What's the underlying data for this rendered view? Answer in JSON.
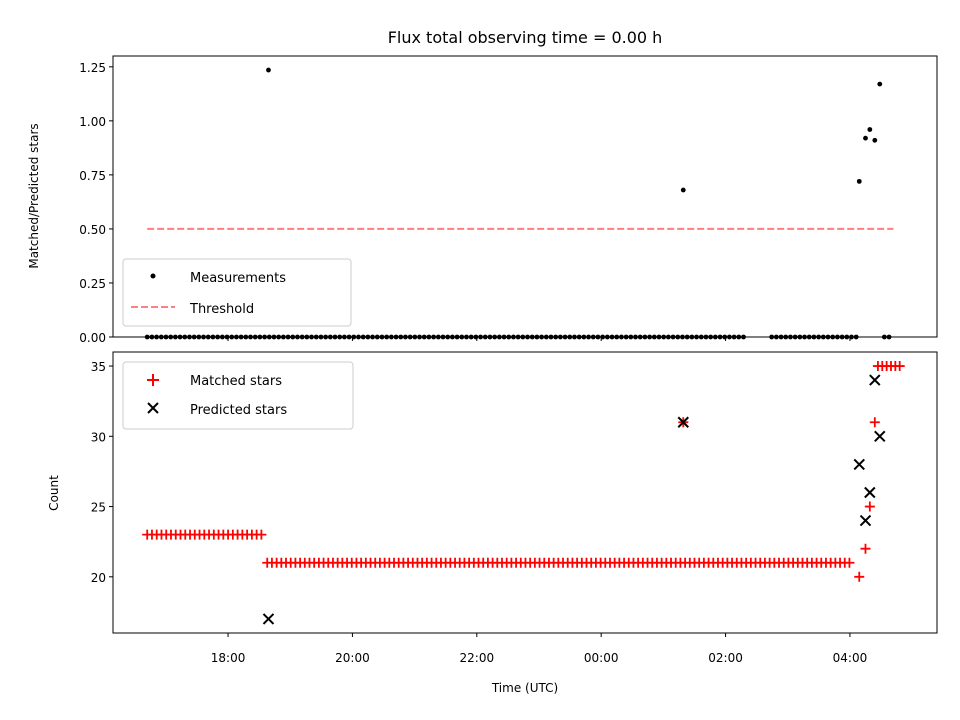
{
  "figure": {
    "title": "Flux total observing time = 0.00 h",
    "xlabel": "Time (UTC)"
  },
  "chart_data": [
    {
      "type": "scatter",
      "ylabel": "Matched/Predicted stars",
      "xlim": [
        -1.85,
        11.4
      ],
      "ylim": [
        0,
        1.3
      ],
      "yticks": [
        0.0,
        0.25,
        0.5,
        0.75,
        1.0,
        1.25
      ],
      "ytick_labels": [
        "0.00",
        "0.25",
        "0.50",
        "0.75",
        "1.00",
        "1.25"
      ],
      "legend_position": "lower-left",
      "threshold": {
        "name": "Threshold",
        "value": 0.5,
        "x_range": [
          -1.3,
          10.7
        ],
        "color": "#ff7f7f"
      },
      "series": [
        {
          "name": "Measurements",
          "color": "#000000",
          "marker": "dot",
          "zeros": {
            "start": -1.3,
            "end": 10.7,
            "step": 0.0755,
            "value": 0,
            "skip": [
              [
                8.3,
                8.7
              ],
              [
                10.15,
                10.55
              ]
            ]
          },
          "points": [
            {
              "x": 0.65,
              "y": 1.235
            },
            {
              "x": 7.32,
              "y": 0.68
            },
            {
              "x": 10.15,
              "y": 0.72
            },
            {
              "x": 10.25,
              "y": 0.92
            },
            {
              "x": 10.32,
              "y": 0.96
            },
            {
              "x": 10.4,
              "y": 0.91
            },
            {
              "x": 10.48,
              "y": 1.17
            }
          ]
        }
      ]
    },
    {
      "type": "scatter",
      "ylabel": "Count",
      "xlim": [
        -1.85,
        11.4
      ],
      "ylim": [
        16,
        36
      ],
      "yticks": [
        20,
        25,
        30,
        35
      ],
      "ytick_labels": [
        "20",
        "25",
        "30",
        "35"
      ],
      "xticks": [
        0,
        2,
        4,
        6,
        8,
        10
      ],
      "xtick_labels": [
        "18:00",
        "20:00",
        "22:00",
        "00:00",
        "02:00",
        "04:00"
      ],
      "legend_position": "upper-left",
      "series": [
        {
          "name": "Matched stars",
          "color": "#ff0000",
          "marker": "plus",
          "runs": [
            {
              "start": -1.3,
              "end": 0.6,
              "step": 0.0765,
              "value": 23
            },
            {
              "start": 0.63,
              "end": 10.05,
              "step": 0.0755,
              "value": 21
            },
            {
              "start": 10.45,
              "end": 10.8,
              "step": 0.07,
              "value": 35
            }
          ],
          "points": [
            {
              "x": 10.15,
              "y": 20
            },
            {
              "x": 10.25,
              "y": 22
            },
            {
              "x": 10.32,
              "y": 25
            },
            {
              "x": 10.4,
              "y": 31
            },
            {
              "x": 7.32,
              "y": 31
            }
          ]
        },
        {
          "name": "Predicted stars",
          "color": "#000000",
          "marker": "x",
          "points": [
            {
              "x": 0.65,
              "y": 17
            },
            {
              "x": 7.32,
              "y": 31
            },
            {
              "x": 10.15,
              "y": 28
            },
            {
              "x": 10.25,
              "y": 24
            },
            {
              "x": 10.32,
              "y": 26
            },
            {
              "x": 10.4,
              "y": 34
            },
            {
              "x": 10.48,
              "y": 30
            }
          ]
        }
      ]
    }
  ]
}
